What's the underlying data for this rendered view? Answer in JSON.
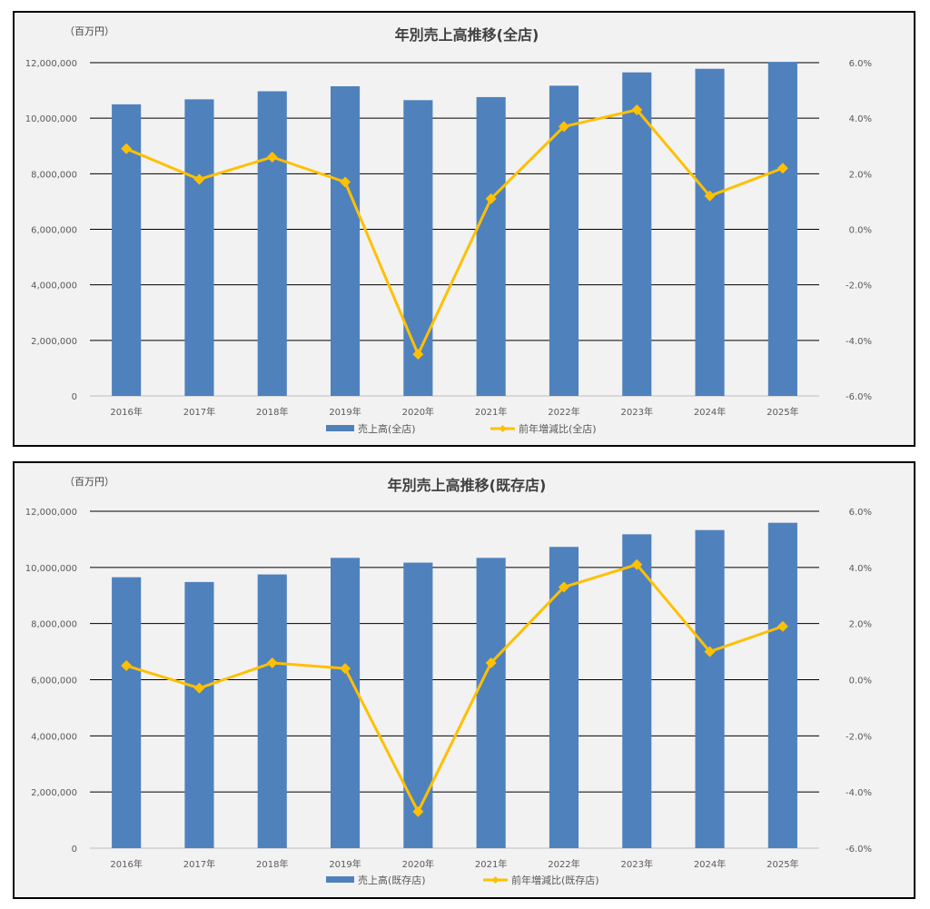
{
  "charts": [
    {
      "unit_label": "（百万円）",
      "chart_data": {
        "type": "bar",
        "title": "年別売上高推移(全店)",
        "categories": [
          "2016年",
          "2017年",
          "2018年",
          "2019年",
          "2020年",
          "2021年",
          "2022年",
          "2023年",
          "2024年",
          "2025年"
        ],
        "series": [
          {
            "name": "売上高(全店)",
            "type": "bar",
            "axis": "left",
            "color": "#4f81bd",
            "values": [
              10500000,
              10680000,
              10970000,
              11150000,
              10650000,
              10760000,
              11170000,
              11650000,
              11780000,
              12030000
            ]
          },
          {
            "name": "前年増減比(全店)",
            "type": "line",
            "axis": "right",
            "color": "#ffc000",
            "values": [
              0.029,
              0.018,
              0.026,
              0.017,
              -0.045,
              0.011,
              0.037,
              0.043,
              0.012,
              0.022
            ]
          }
        ],
        "y_left": {
          "min": 0,
          "max": 12000000,
          "ticks": [
            "0",
            "2,000,000",
            "4,000,000",
            "6,000,000",
            "8,000,000",
            "10,000,000",
            "12,000,000"
          ]
        },
        "y_right": {
          "min": -0.06,
          "max": 0.06,
          "ticks": [
            "-6.0%",
            "-4.0%",
            "-2.0%",
            "0.0%",
            "2.0%",
            "4.0%",
            "6.0%"
          ]
        },
        "grid": true,
        "legend_position": "bottom"
      }
    },
    {
      "unit_label": "（百万円）",
      "chart_data": {
        "type": "bar",
        "title": "年別売上高推移(既存店)",
        "categories": [
          "2016年",
          "2017年",
          "2018年",
          "2019年",
          "2020年",
          "2021年",
          "2022年",
          "2023年",
          "2024年",
          "2025年"
        ],
        "series": [
          {
            "name": "売上高(既存店)",
            "type": "bar",
            "axis": "left",
            "color": "#4f81bd",
            "values": [
              9650000,
              9480000,
              9750000,
              10340000,
              10170000,
              10340000,
              10730000,
              11180000,
              11330000,
              11590000
            ]
          },
          {
            "name": "前年増減比(既存店)",
            "type": "line",
            "axis": "right",
            "color": "#ffc000",
            "values": [
              0.005,
              -0.003,
              0.006,
              0.004,
              -0.047,
              0.006,
              0.033,
              0.041,
              0.01,
              0.019
            ]
          }
        ],
        "y_left": {
          "min": 0,
          "max": 12000000,
          "ticks": [
            "0",
            "2,000,000",
            "4,000,000",
            "6,000,000",
            "8,000,000",
            "10,000,000",
            "12,000,000"
          ]
        },
        "y_right": {
          "min": -0.06,
          "max": 0.06,
          "ticks": [
            "-6.0%",
            "-4.0%",
            "-2.0%",
            "0.0%",
            "2.0%",
            "4.0%",
            "6.0%"
          ]
        },
        "grid": true,
        "legend_position": "bottom"
      }
    }
  ]
}
